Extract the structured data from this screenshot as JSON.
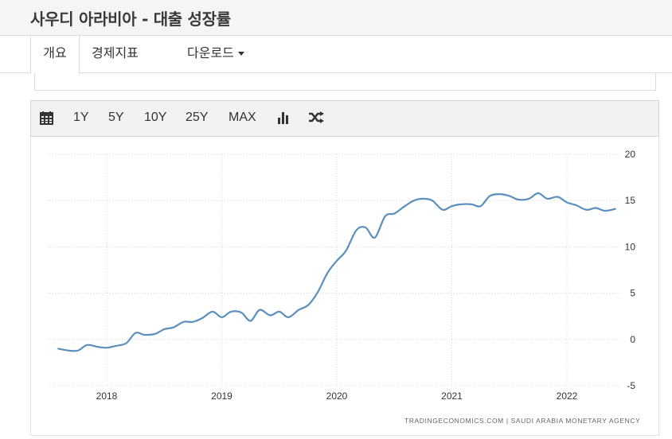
{
  "page": {
    "title": "사우디 아라비아 - 대출 성장률"
  },
  "tabs": [
    {
      "label": "개요",
      "active": true
    },
    {
      "label": "경제지표",
      "active": false
    },
    {
      "label": "다운로드",
      "active": false,
      "dropdown": true
    }
  ],
  "toolbar": {
    "calendar_icon": "calendar-icon",
    "ranges": [
      "1Y",
      "5Y",
      "10Y",
      "25Y",
      "MAX"
    ],
    "chart_type_icon": "bar-chart-icon",
    "compare_icon": "shuffle-icon"
  },
  "chart_data": {
    "type": "line",
    "title": "",
    "xlabel": "",
    "ylabel": "",
    "ylim": [
      -5,
      20
    ],
    "yticks": [
      -5,
      0,
      5,
      10,
      15,
      20
    ],
    "xticks": [
      2018,
      2019,
      2020,
      2021,
      2022
    ],
    "grid": true,
    "line_color": "#5b8fbd",
    "series": [
      {
        "values": [
          [
            2017.58,
            -1.0
          ],
          [
            2017.67,
            -1.2
          ],
          [
            2017.75,
            -1.2
          ],
          [
            2017.83,
            -0.6
          ],
          [
            2017.92,
            -0.8
          ],
          [
            2018.0,
            -0.9
          ],
          [
            2018.08,
            -0.7
          ],
          [
            2018.17,
            -0.4
          ],
          [
            2018.25,
            0.7
          ],
          [
            2018.33,
            0.5
          ],
          [
            2018.42,
            0.6
          ],
          [
            2018.5,
            1.1
          ],
          [
            2018.58,
            1.3
          ],
          [
            2018.67,
            1.9
          ],
          [
            2018.75,
            1.9
          ],
          [
            2018.83,
            2.3
          ],
          [
            2018.92,
            3.0
          ],
          [
            2019.0,
            2.4
          ],
          [
            2019.08,
            3.0
          ],
          [
            2019.17,
            2.9
          ],
          [
            2019.25,
            2.0
          ],
          [
            2019.33,
            3.2
          ],
          [
            2019.42,
            2.6
          ],
          [
            2019.5,
            3.0
          ],
          [
            2019.58,
            2.4
          ],
          [
            2019.67,
            3.2
          ],
          [
            2019.75,
            3.7
          ],
          [
            2019.83,
            5.0
          ],
          [
            2019.92,
            7.2
          ],
          [
            2020.0,
            8.5
          ],
          [
            2020.08,
            9.6
          ],
          [
            2020.17,
            11.8
          ],
          [
            2020.25,
            12.1
          ],
          [
            2020.33,
            11.0
          ],
          [
            2020.42,
            13.3
          ],
          [
            2020.5,
            13.6
          ],
          [
            2020.58,
            14.3
          ],
          [
            2020.67,
            15.0
          ],
          [
            2020.75,
            15.2
          ],
          [
            2020.83,
            15.0
          ],
          [
            2020.92,
            14.0
          ],
          [
            2021.0,
            14.4
          ],
          [
            2021.08,
            14.6
          ],
          [
            2021.17,
            14.6
          ],
          [
            2021.25,
            14.4
          ],
          [
            2021.33,
            15.5
          ],
          [
            2021.42,
            15.7
          ],
          [
            2021.5,
            15.5
          ],
          [
            2021.58,
            15.1
          ],
          [
            2021.67,
            15.2
          ],
          [
            2021.75,
            15.8
          ],
          [
            2021.83,
            15.2
          ],
          [
            2021.92,
            15.4
          ],
          [
            2022.0,
            14.8
          ],
          [
            2022.08,
            14.5
          ],
          [
            2022.17,
            14.0
          ],
          [
            2022.25,
            14.2
          ],
          [
            2022.33,
            13.9
          ],
          [
            2022.42,
            14.1
          ]
        ]
      }
    ],
    "source": "TRADINGECONOMICS.COM  |  SAUDI ARABIA MONETARY AGENCY"
  }
}
